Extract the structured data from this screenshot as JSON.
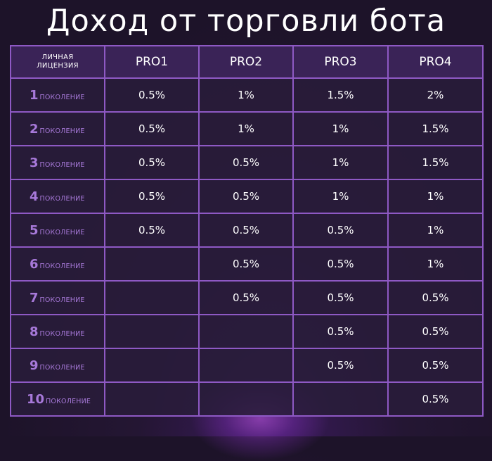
{
  "title": "Доход от торговли бота",
  "table": {
    "corner_label": "ЛИЧНАЯ\nЛИЦЕНЗИЯ",
    "columns": [
      "PRO1",
      "PRO2",
      "PRO3",
      "PRO4"
    ],
    "generation_suffix": "поколение",
    "rows": [
      {
        "generation": "1",
        "values": [
          "0.5%",
          "1%",
          "1.5%",
          "2%"
        ]
      },
      {
        "generation": "2",
        "values": [
          "0.5%",
          "1%",
          "1%",
          "1.5%"
        ]
      },
      {
        "generation": "3",
        "values": [
          "0.5%",
          "0.5%",
          "1%",
          "1.5%"
        ]
      },
      {
        "generation": "4",
        "values": [
          "0.5%",
          "0.5%",
          "1%",
          "1%"
        ]
      },
      {
        "generation": "5",
        "values": [
          "0.5%",
          "0.5%",
          "0.5%",
          "1%"
        ]
      },
      {
        "generation": "6",
        "values": [
          "",
          "0.5%",
          "0.5%",
          "1%"
        ]
      },
      {
        "generation": "7",
        "values": [
          "",
          "0.5%",
          "0.5%",
          "0.5%"
        ]
      },
      {
        "generation": "8",
        "values": [
          "",
          "",
          "0.5%",
          "0.5%"
        ]
      },
      {
        "generation": "9",
        "values": [
          "",
          "",
          "0.5%",
          "0.5%"
        ]
      },
      {
        "generation": "10",
        "values": [
          "",
          "",
          "",
          "0.5%"
        ]
      }
    ]
  },
  "colors": {
    "background": "#1d1329",
    "grid_border": "#8e59c4",
    "header_bg": "#3a2357",
    "generation_text": "#a779d9",
    "value_text": "#ffffff"
  }
}
